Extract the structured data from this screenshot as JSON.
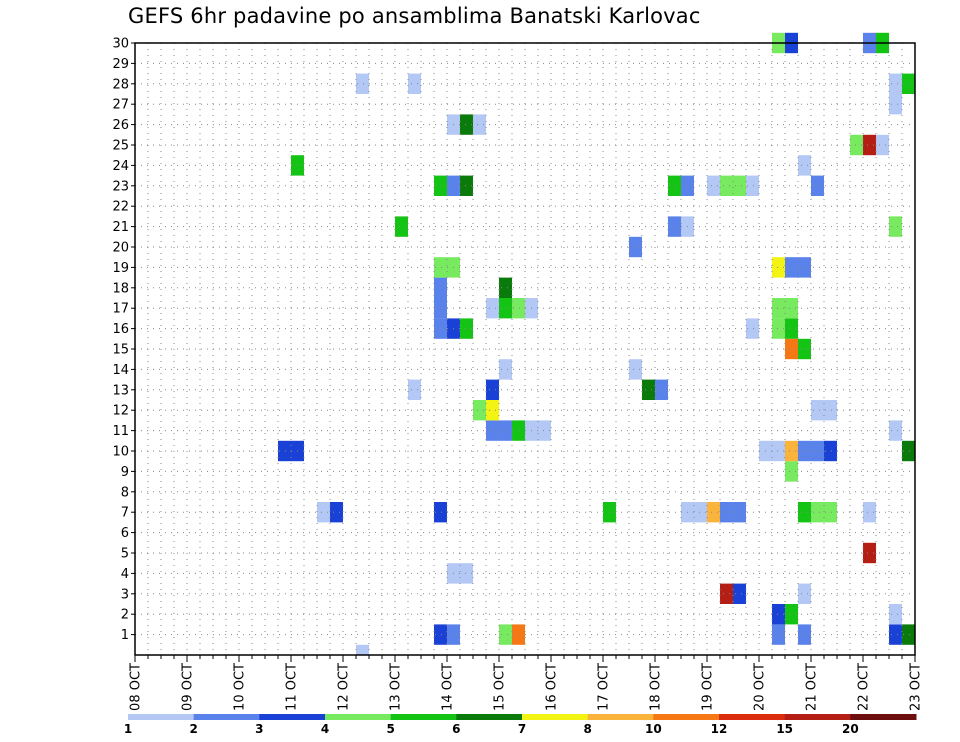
{
  "chart_data": {
    "type": "heatmap",
    "title": "GEFS 6hr padavine po ansamblima Banatski Karlovac",
    "xlabel": "",
    "ylabel": "",
    "x_ticks": [
      "08 OCT",
      "09 OCT",
      "10 OCT",
      "11 OCT",
      "12 OCT",
      "13 OCT",
      "14 OCT",
      "15 OCT",
      "16 OCT",
      "17 OCT",
      "18 OCT",
      "19 OCT",
      "20 OCT",
      "21 OCT",
      "22 OCT",
      "23 OCT"
    ],
    "y_ticks": [
      "1",
      "2",
      "3",
      "4",
      "5",
      "6",
      "7",
      "8",
      "9",
      "10",
      "11",
      "12",
      "13",
      "14",
      "15",
      "16",
      "17",
      "18",
      "19",
      "20",
      "21",
      "22",
      "23",
      "24",
      "25",
      "26",
      "27",
      "28",
      "29",
      "30"
    ],
    "xlim": [
      0,
      60
    ],
    "ylim": [
      0,
      30
    ],
    "grid": true,
    "x_step_hours": 6,
    "colorbar": {
      "labels": [
        "1",
        "2",
        "3",
        "4",
        "5",
        "6",
        "7",
        "8",
        "10",
        "12",
        "15",
        "20"
      ],
      "colors": [
        "#b4c8f5",
        "#5a82eb",
        "#1a41d6",
        "#78ea5f",
        "#14c414",
        "#0a7a0a",
        "#f4f414",
        "#fab43c",
        "#f57814",
        "#dc2d0f",
        "#b41e14",
        "#6e0f0f"
      ]
    },
    "cells": [
      [
        24,
        1,
        3
      ],
      [
        25,
        1,
        2
      ],
      [
        29,
        1,
        4
      ],
      [
        30,
        1,
        9
      ],
      [
        50,
        1,
        2
      ],
      [
        52,
        1,
        2
      ],
      [
        59,
        1,
        3
      ],
      [
        60,
        1,
        6
      ],
      [
        50,
        2,
        3
      ],
      [
        51,
        2,
        5
      ],
      [
        59,
        2,
        1
      ],
      [
        46,
        3,
        11
      ],
      [
        47,
        3,
        3
      ],
      [
        52,
        3,
        1
      ],
      [
        25,
        4,
        1
      ],
      [
        26,
        4,
        1
      ],
      [
        57,
        5,
        11
      ],
      [
        15,
        7,
        1
      ],
      [
        16,
        7,
        3
      ],
      [
        24,
        7,
        3
      ],
      [
        37,
        7,
        5
      ],
      [
        43,
        7,
        1
      ],
      [
        44,
        7,
        1
      ],
      [
        45,
        7,
        8
      ],
      [
        46,
        7,
        2
      ],
      [
        47,
        7,
        2
      ],
      [
        52,
        7,
        5
      ],
      [
        53,
        7,
        4
      ],
      [
        54,
        7,
        4
      ],
      [
        57,
        7,
        1
      ],
      [
        51,
        9,
        4
      ],
      [
        12,
        10,
        3
      ],
      [
        13,
        10,
        3
      ],
      [
        49,
        10,
        1
      ],
      [
        50,
        10,
        1
      ],
      [
        51,
        10,
        8
      ],
      [
        52,
        10,
        2
      ],
      [
        53,
        10,
        2
      ],
      [
        54,
        10,
        3
      ],
      [
        60,
        10,
        6
      ],
      [
        28,
        11,
        2
      ],
      [
        29,
        11,
        2
      ],
      [
        30,
        11,
        5
      ],
      [
        31,
        11,
        1
      ],
      [
        32,
        11,
        1
      ],
      [
        59,
        11,
        1
      ],
      [
        27,
        12,
        4
      ],
      [
        28,
        12,
        7
      ],
      [
        53,
        12,
        1
      ],
      [
        54,
        12,
        1
      ],
      [
        22,
        13,
        1
      ],
      [
        28,
        13,
        3
      ],
      [
        40,
        13,
        6
      ],
      [
        41,
        13,
        2
      ],
      [
        29,
        14,
        1
      ],
      [
        39,
        14,
        1
      ],
      [
        51,
        15,
        9
      ],
      [
        52,
        15,
        5
      ],
      [
        24,
        16,
        2
      ],
      [
        25,
        16,
        3
      ],
      [
        26,
        16,
        5
      ],
      [
        48,
        16,
        1
      ],
      [
        50,
        16,
        4
      ],
      [
        51,
        16,
        5
      ],
      [
        24,
        17,
        2
      ],
      [
        28,
        17,
        1
      ],
      [
        29,
        17,
        5
      ],
      [
        30,
        17,
        4
      ],
      [
        31,
        17,
        1
      ],
      [
        50,
        17,
        4
      ],
      [
        51,
        17,
        4
      ],
      [
        24,
        18,
        2
      ],
      [
        29,
        18,
        6
      ],
      [
        24,
        19,
        4
      ],
      [
        25,
        19,
        4
      ],
      [
        50,
        19,
        7
      ],
      [
        51,
        19,
        2
      ],
      [
        52,
        19,
        2
      ],
      [
        39,
        20,
        2
      ],
      [
        21,
        21,
        5
      ],
      [
        42,
        21,
        2
      ],
      [
        43,
        21,
        1
      ],
      [
        59,
        21,
        4
      ],
      [
        24,
        23,
        5
      ],
      [
        25,
        23,
        2
      ],
      [
        26,
        23,
        6
      ],
      [
        42,
        23,
        5
      ],
      [
        43,
        23,
        2
      ],
      [
        45,
        23,
        1
      ],
      [
        46,
        23,
        4
      ],
      [
        47,
        23,
        4
      ],
      [
        48,
        23,
        1
      ],
      [
        53,
        23,
        2
      ],
      [
        13,
        24,
        5
      ],
      [
        52,
        24,
        1
      ],
      [
        56,
        25,
        4
      ],
      [
        57,
        25,
        11
      ],
      [
        58,
        25,
        1
      ],
      [
        25,
        26,
        1
      ],
      [
        26,
        26,
        6
      ],
      [
        27,
        26,
        1
      ],
      [
        59,
        27,
        1
      ],
      [
        18,
        28,
        1
      ],
      [
        22,
        28,
        1
      ],
      [
        59,
        28,
        1
      ],
      [
        60,
        28,
        5
      ],
      [
        50,
        30,
        4
      ],
      [
        51,
        30,
        3
      ],
      [
        57,
        30,
        2
      ],
      [
        58,
        30,
        5
      ]
    ],
    "partial_cells": [
      [
        18,
        0,
        1
      ]
    ]
  }
}
